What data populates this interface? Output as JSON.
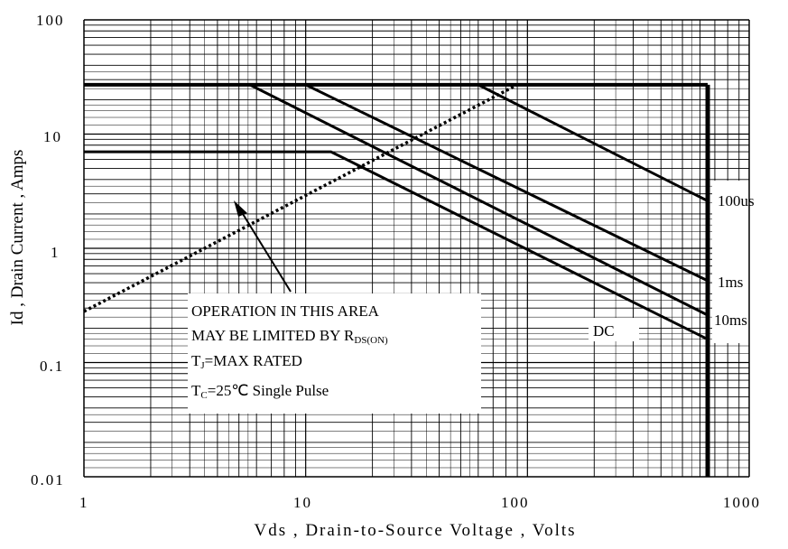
{
  "chart_data": {
    "type": "line",
    "title": "",
    "xlabel": "Vds , Drain-to-Source Voltage , Volts",
    "ylabel": "Id , Drain Current , Amps",
    "x_scale": "log",
    "y_scale": "log",
    "xlim": [
      1,
      1000
    ],
    "ylim": [
      0.01,
      100
    ],
    "x_ticks": [
      "1",
      "10",
      "100",
      "1000"
    ],
    "y_ticks": [
      "100",
      "10",
      "1",
      "0.1",
      "0.01"
    ],
    "grid": true,
    "series": [
      {
        "name": "100us",
        "points": [
          [
            1,
            27
          ],
          [
            60,
            27
          ],
          [
            650,
            2.6
          ]
        ]
      },
      {
        "name": "1ms",
        "points": [
          [
            1,
            27
          ],
          [
            10,
            27
          ],
          [
            650,
            0.52
          ]
        ]
      },
      {
        "name": "10ms",
        "points": [
          [
            1,
            27
          ],
          [
            5.6,
            27
          ],
          [
            650,
            0.26
          ]
        ]
      },
      {
        "name": "DC",
        "points": [
          [
            1,
            7
          ],
          [
            13,
            7
          ],
          [
            650,
            0.16
          ]
        ]
      }
    ],
    "limits": {
      "current_limit": 27,
      "voltage_limit": 650,
      "rds_on_line": [
        [
          1,
          0.28
        ],
        [
          90,
          27
        ]
      ]
    },
    "annotations": {
      "line1": "OPERATION IN THIS AREA",
      "line2_prefix": "MAY BE LIMITED BY R",
      "line2_sub": "DS(ON)",
      "line3_prefix": "T",
      "line3_sub": "J",
      "line3_suffix": "=MAX RATED",
      "line4_prefix": "T",
      "line4_sub": "C",
      "line4_suffix": "=25℃  Single Pulse"
    }
  }
}
